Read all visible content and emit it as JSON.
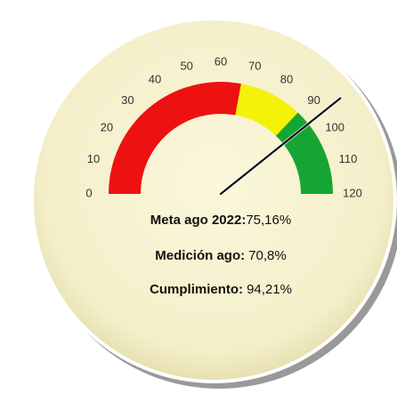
{
  "chart_data": {
    "type": "gauge",
    "range": [
      0,
      120
    ],
    "ticks": [
      0,
      10,
      20,
      30,
      40,
      50,
      60,
      70,
      80,
      90,
      100,
      110,
      120
    ],
    "bands": [
      {
        "from": 0,
        "to": 67,
        "color": "#ee1111"
      },
      {
        "from": 67,
        "to": 89,
        "color": "#f5f20a"
      },
      {
        "from": 89,
        "to": 120,
        "color": "#16a534"
      }
    ],
    "value": 94.21,
    "value_label": "94,21%",
    "lines": [
      {
        "label": "Meta ago 2022:",
        "text": "75,16%"
      },
      {
        "label": "Medición ago:",
        "text": "70,8%"
      },
      {
        "label": "Cumplimiento:"
      }
    ]
  }
}
